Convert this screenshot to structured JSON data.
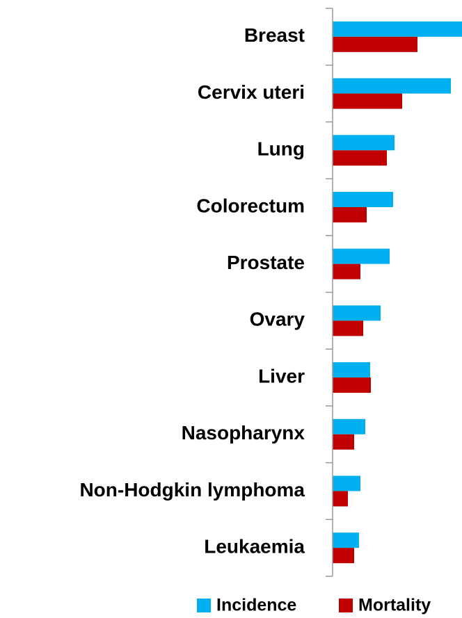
{
  "chart_data": {
    "type": "bar",
    "orientation": "horizontal",
    "categories": [
      "Breast",
      "Cervix uteri",
      "Lung",
      "Colorectum",
      "Prostate",
      "Ovary",
      "Liver",
      "Nasopharynx",
      "Non-Hodgkin lymphoma",
      "Leukaemia"
    ],
    "series": [
      {
        "name": "Incidence",
        "color": "#00b0f0",
        "values": [
          186,
          170,
          89,
          87,
          82,
          69,
          54,
          47,
          40,
          38
        ]
      },
      {
        "name": "Mortality",
        "color": "#c00000",
        "values": [
          122,
          100,
          78,
          49,
          40,
          44,
          55,
          31,
          22,
          31
        ]
      }
    ],
    "xlim": [
      0,
      186
    ],
    "legend": "bottom"
  }
}
